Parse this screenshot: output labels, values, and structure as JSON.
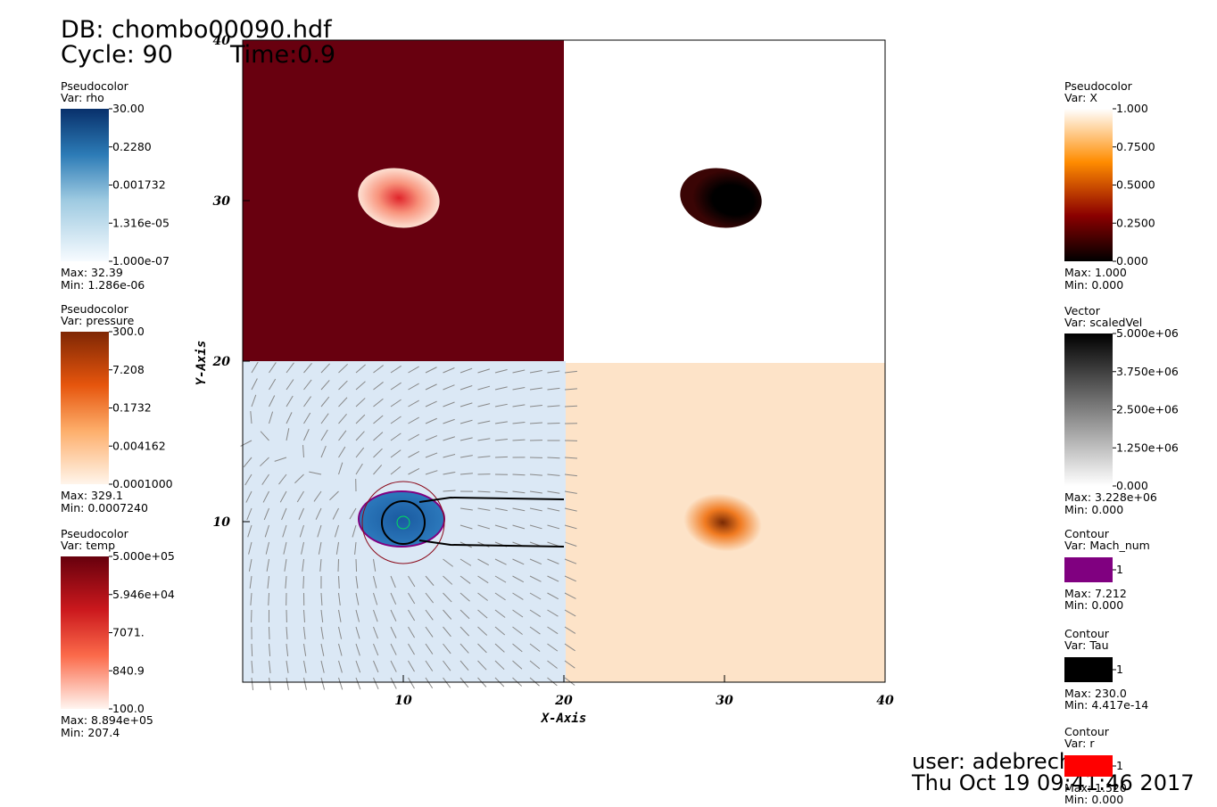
{
  "header": {
    "db": "DB: chombo00090.hdf",
    "cycle": "Cycle: 90",
    "time": "Time:0.9"
  },
  "plot": {
    "x_label": "X-Axis",
    "y_label": "Y-Axis",
    "xlim": [
      0,
      40
    ],
    "ylim": [
      0,
      40
    ],
    "xticks": [
      10,
      20,
      30,
      40
    ],
    "yticks": [
      10,
      20,
      30,
      40
    ]
  },
  "legends": [
    {
      "plot": "Pseudocolor",
      "var": "Var: rho",
      "ticks": [
        "30.00",
        "0.2280",
        "0.001732",
        "1.316e-05",
        "1.000e-07"
      ],
      "max": "Max:  32.39",
      "min": "Min:  1.286e-06"
    },
    {
      "plot": "Pseudocolor",
      "var": "Var: pressure",
      "ticks": [
        "300.0",
        "7.208",
        "0.1732",
        "0.004162",
        "0.0001000"
      ],
      "max": "Max:  329.1",
      "min": "Min:  0.0007240"
    },
    {
      "plot": "Pseudocolor",
      "var": "Var: temp",
      "ticks": [
        "5.000e+05",
        "5.946e+04",
        "7071.",
        "840.9",
        "100.0"
      ],
      "max": "Max:  8.894e+05",
      "min": "Min:  207.4"
    },
    {
      "plot": "Pseudocolor",
      "var": "Var: X",
      "ticks": [
        "1.000",
        "0.7500",
        "0.5000",
        "0.2500",
        "0.000"
      ],
      "max": "Max:  1.000",
      "min": "Min:  0.000"
    },
    {
      "plot": "Vector",
      "var": "Var: scaledVel",
      "ticks": [
        "5.000e+06",
        "3.750e+06",
        "2.500e+06",
        "1.250e+06",
        "0.000"
      ],
      "max": "Max:  3.228e+06",
      "min": "Min:  0.000"
    },
    {
      "plot": "Contour",
      "var": "Var: Mach_num",
      "ticks": [
        "1"
      ],
      "max": "Max:  7.212",
      "min": "Min:  0.000"
    },
    {
      "plot": "Contour",
      "var": "Var: Tau",
      "ticks": [
        "1"
      ],
      "max": "Max:  230.0",
      "min": "Min:  4.417e-14"
    },
    {
      "plot": "Contour",
      "var": "Var: r",
      "ticks": [
        "1"
      ],
      "max": "Max:  1.520",
      "min": "Min:  0.000"
    }
  ],
  "footer": {
    "user": "user: adebrech",
    "date": "Thu Oct 19 09:41:46 2017"
  }
}
